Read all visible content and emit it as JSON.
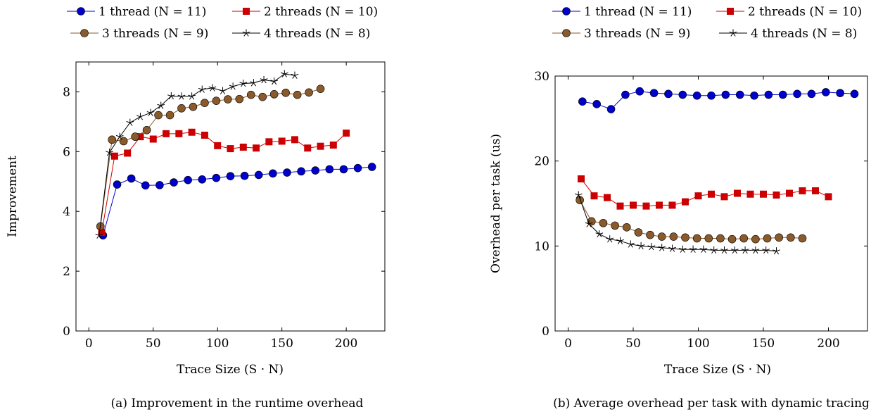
{
  "chart_data": [
    {
      "type": "line",
      "caption": "(a) Improvement in the runtime overhead",
      "xlabel": "Trace Size (S · N)",
      "ylabel": "Improvement",
      "xlim": [
        -10,
        230
      ],
      "ylim": [
        0,
        9
      ],
      "xticks": [
        0,
        50,
        100,
        150,
        200
      ],
      "yticks": [
        0,
        2,
        4,
        6,
        8
      ],
      "legend_placement": "top",
      "series": [
        {
          "name": "1 thread (N = 11)",
          "color": "#0000cc",
          "marker": "circle",
          "x": [
            11,
            22,
            33,
            44,
            55,
            66,
            77,
            88,
            99,
            110,
            121,
            132,
            143,
            154,
            165,
            176,
            187,
            198,
            209,
            220
          ],
          "y": [
            3.2,
            4.9,
            5.1,
            4.87,
            4.88,
            4.97,
            5.05,
            5.07,
            5.12,
            5.18,
            5.19,
            5.22,
            5.27,
            5.3,
            5.34,
            5.37,
            5.41,
            5.41,
            5.45,
            5.49
          ]
        },
        {
          "name": "2 threads (N = 10)",
          "color": "#cc0000",
          "marker": "square",
          "x": [
            10,
            20,
            30,
            40,
            50,
            60,
            70,
            80,
            90,
            100,
            110,
            120,
            130,
            140,
            150,
            160,
            170,
            180,
            190,
            200
          ],
          "y": [
            3.3,
            5.85,
            5.95,
            6.5,
            6.42,
            6.6,
            6.6,
            6.65,
            6.55,
            6.2,
            6.1,
            6.15,
            6.12,
            6.33,
            6.35,
            6.4,
            6.12,
            6.18,
            6.22,
            6.62
          ]
        },
        {
          "name": "3 threads (N = 9)",
          "color": "#8b5a2b",
          "marker": "circle",
          "x": [
            9,
            18,
            27,
            36,
            45,
            54,
            63,
            72,
            81,
            90,
            99,
            108,
            117,
            126,
            135,
            144,
            153,
            162,
            171,
            180
          ],
          "y": [
            3.5,
            6.4,
            6.35,
            6.5,
            6.72,
            7.22,
            7.22,
            7.45,
            7.5,
            7.63,
            7.7,
            7.75,
            7.76,
            7.9,
            7.83,
            7.92,
            7.97,
            7.9,
            7.98,
            8.1
          ]
        },
        {
          "name": "4 threads (N = 8)",
          "color": "#000000",
          "marker": "star",
          "x": [
            8,
            16,
            24,
            32,
            40,
            48,
            56,
            64,
            72,
            80,
            88,
            96,
            104,
            112,
            120,
            128,
            136,
            144,
            152,
            160
          ],
          "y": [
            3.2,
            5.97,
            6.5,
            6.97,
            7.17,
            7.3,
            7.54,
            7.86,
            7.85,
            7.85,
            8.08,
            8.13,
            8.03,
            8.18,
            8.28,
            8.3,
            8.4,
            8.35,
            8.6,
            8.55
          ]
        }
      ]
    },
    {
      "type": "line",
      "caption": "(b) Average overhead per task with dynamic tracing",
      "xlabel": "Trace Size (S · N)",
      "ylabel": "Overhead per task (us)",
      "xlim": [
        -10,
        230
      ],
      "ylim": [
        0,
        30
      ],
      "xticks": [
        0,
        50,
        100,
        150,
        200
      ],
      "yticks": [
        0,
        10,
        20,
        30
      ],
      "legend_placement": "top",
      "series": [
        {
          "name": "1 thread (N = 11)",
          "color": "#0000cc",
          "marker": "circle",
          "x": [
            11,
            22,
            33,
            44,
            55,
            66,
            77,
            88,
            99,
            110,
            121,
            132,
            143,
            154,
            165,
            176,
            187,
            198,
            209,
            220
          ],
          "y": [
            27.0,
            26.7,
            26.1,
            27.8,
            28.2,
            28.0,
            27.9,
            27.8,
            27.7,
            27.7,
            27.8,
            27.8,
            27.7,
            27.8,
            27.8,
            27.9,
            27.9,
            28.1,
            28.0,
            27.9
          ]
        },
        {
          "name": "2 threads (N = 10)",
          "color": "#cc0000",
          "marker": "square",
          "x": [
            10,
            20,
            30,
            40,
            50,
            60,
            70,
            80,
            90,
            100,
            110,
            120,
            130,
            140,
            150,
            160,
            170,
            180,
            190,
            200
          ],
          "y": [
            17.9,
            15.9,
            15.7,
            14.7,
            14.8,
            14.7,
            14.8,
            14.8,
            15.2,
            15.9,
            16.1,
            15.8,
            16.2,
            16.1,
            16.1,
            16.0,
            16.2,
            16.5,
            16.5,
            15.8
          ]
        },
        {
          "name": "3 threads (N = 9)",
          "color": "#8b5a2b",
          "marker": "circle",
          "x": [
            9,
            18,
            27,
            36,
            45,
            54,
            63,
            72,
            81,
            90,
            99,
            108,
            117,
            126,
            135,
            144,
            153,
            162,
            171,
            180
          ],
          "y": [
            15.4,
            12.9,
            12.7,
            12.4,
            12.2,
            11.6,
            11.3,
            11.1,
            11.1,
            11.0,
            10.9,
            10.9,
            10.9,
            10.8,
            10.9,
            10.8,
            10.9,
            11.0,
            11.0,
            10.9
          ]
        },
        {
          "name": "4 threads (N = 8)",
          "color": "#000000",
          "marker": "star",
          "x": [
            8,
            16,
            24,
            32,
            40,
            48,
            56,
            64,
            72,
            80,
            88,
            96,
            104,
            112,
            120,
            128,
            136,
            144,
            152,
            160
          ],
          "y": [
            16.0,
            12.6,
            11.4,
            10.8,
            10.6,
            10.2,
            10.0,
            9.9,
            9.8,
            9.7,
            9.6,
            9.6,
            9.6,
            9.5,
            9.5,
            9.5,
            9.5,
            9.5,
            9.5,
            9.4
          ]
        }
      ]
    }
  ]
}
